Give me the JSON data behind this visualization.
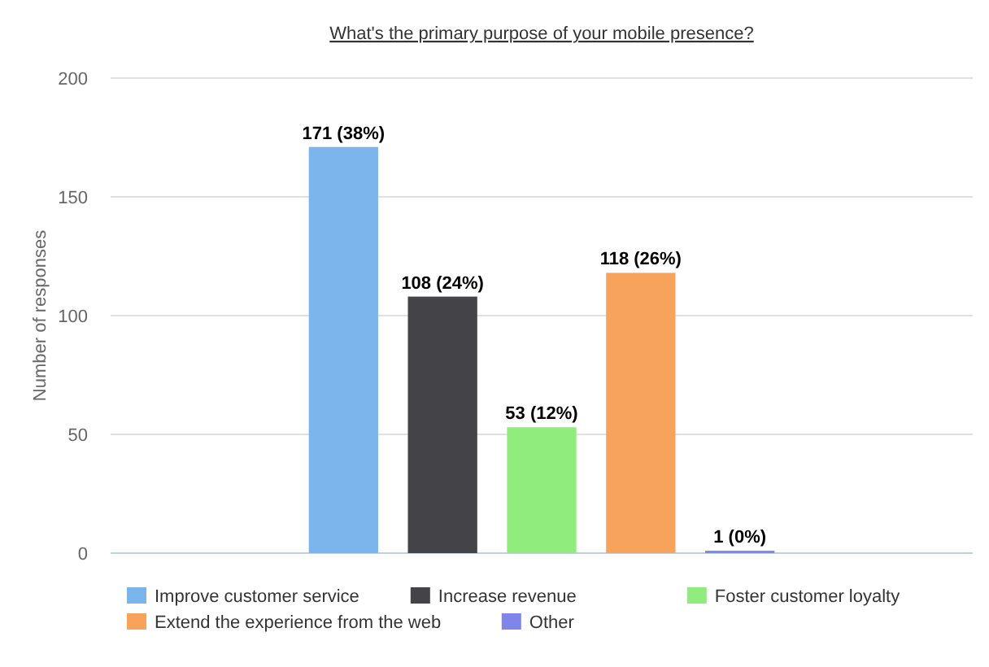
{
  "chart_data": {
    "type": "bar",
    "title": "What's the primary purpose of your mobile presence?",
    "ylabel": "Number of responses",
    "categories": [
      null
    ],
    "series": [
      {
        "name": "Improve customer service",
        "color": "#7cb5ec",
        "values": [
          171
        ],
        "value_labels": [
          "171 (38%)"
        ]
      },
      {
        "name": "Increase revenue",
        "color": "#434348",
        "values": [
          108
        ],
        "value_labels": [
          "108 (24%)"
        ]
      },
      {
        "name": "Foster customer loyalty",
        "color": "#90ed7d",
        "values": [
          53
        ],
        "value_labels": [
          "53 (12%)"
        ]
      },
      {
        "name": "Extend the experience from the web",
        "color": "#f7a35c",
        "values": [
          118
        ],
        "value_labels": [
          "118 (26%)"
        ]
      },
      {
        "name": "Other",
        "color": "#8085e9",
        "values": [
          1
        ],
        "value_labels": [
          "1 (0%)"
        ]
      }
    ],
    "ylim": [
      0,
      200
    ],
    "yticks": [
      0,
      50,
      100,
      150,
      200
    ],
    "grid": "y",
    "legend": "bottom"
  }
}
